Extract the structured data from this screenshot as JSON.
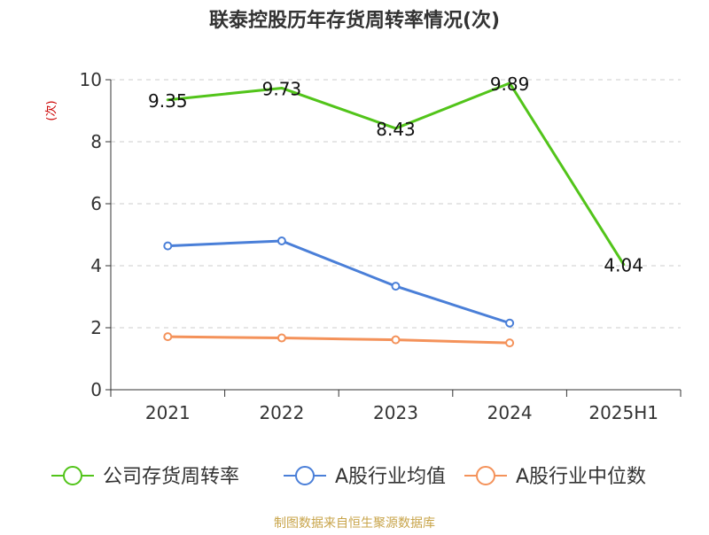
{
  "chart_data": {
    "type": "line",
    "title": "联泰控股历年存货周转率情况(次)",
    "ylabel": "(次)",
    "ylim": [
      0,
      10
    ],
    "yticks": [
      0,
      2,
      4,
      6,
      8,
      10
    ],
    "grid": true,
    "legend_position": "bottom",
    "categories": [
      "2021",
      "2022",
      "2023",
      "2024",
      "2025H1"
    ],
    "series": [
      {
        "name": "公司存货周转率",
        "color": "#52c41a",
        "values": [
          9.35,
          9.73,
          8.43,
          9.89,
          4.04
        ],
        "data_labels": [
          "9.35",
          "9.73",
          "8.43",
          "9.89",
          "4.04"
        ],
        "show_labels": true,
        "show_markers": false
      },
      {
        "name": "A股行业均值",
        "color": "#4a7fd8",
        "values": [
          4.64,
          4.8,
          3.34,
          2.15,
          null
        ],
        "show_labels": false,
        "show_markers": true
      },
      {
        "name": "A股行业中位数",
        "color": "#f4925a",
        "values": [
          1.71,
          1.67,
          1.61,
          1.51,
          null
        ],
        "show_labels": false,
        "show_markers": true
      }
    ],
    "source": "制图数据来自恒生聚源数据库"
  }
}
